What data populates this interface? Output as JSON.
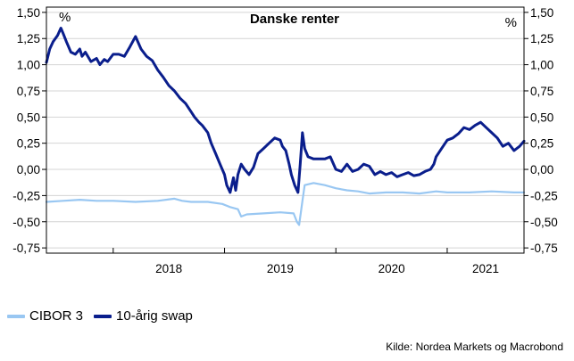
{
  "chart_data": {
    "type": "line",
    "title": "Danske renter",
    "unit_left": "%",
    "unit_right": "%",
    "y_ticks": [
      "1,50",
      "1,25",
      "1,00",
      "0,75",
      "0,50",
      "0,25",
      "0,00",
      "-0,25",
      "-0,50",
      "-0,75"
    ],
    "ylim": [
      -0.8,
      1.55
    ],
    "x_tick_labels": [
      "2018",
      "2019",
      "2020",
      "2021"
    ],
    "xlim": [
      2017.4,
      2021.69
    ],
    "grid": true,
    "legend_placement": "bottom-left",
    "series": [
      {
        "name": "CIBOR 3",
        "color": "#99c7f2",
        "x": [
          2017.4,
          2017.55,
          2017.7,
          2017.85,
          2018.0,
          2018.2,
          2018.4,
          2018.55,
          2018.62,
          2018.7,
          2018.85,
          2018.98,
          2019.05,
          2019.12,
          2019.15,
          2019.2,
          2019.35,
          2019.5,
          2019.62,
          2019.65,
          2019.67,
          2019.7,
          2019.72,
          2019.8,
          2019.9,
          2020.0,
          2020.1,
          2020.2,
          2020.3,
          2020.45,
          2020.6,
          2020.75,
          2020.9,
          2021.0,
          2021.2,
          2021.4,
          2021.6,
          2021.69
        ],
        "values": [
          -0.31,
          -0.3,
          -0.29,
          -0.3,
          -0.3,
          -0.31,
          -0.3,
          -0.28,
          -0.3,
          -0.31,
          -0.31,
          -0.33,
          -0.36,
          -0.38,
          -0.45,
          -0.43,
          -0.42,
          -0.41,
          -0.42,
          -0.5,
          -0.53,
          -0.3,
          -0.15,
          -0.13,
          -0.15,
          -0.18,
          -0.2,
          -0.21,
          -0.23,
          -0.22,
          -0.22,
          -0.23,
          -0.21,
          -0.22,
          -0.22,
          -0.21,
          -0.22,
          -0.22
        ]
      },
      {
        "name": "10-årig swap",
        "color": "#0a1e8c",
        "x": [
          2017.4,
          2017.43,
          2017.46,
          2017.5,
          2017.53,
          2017.55,
          2017.58,
          2017.62,
          2017.66,
          2017.7,
          2017.72,
          2017.75,
          2017.8,
          2017.85,
          2017.88,
          2017.92,
          2017.95,
          2018.0,
          2018.05,
          2018.1,
          2018.15,
          2018.2,
          2018.25,
          2018.3,
          2018.35,
          2018.4,
          2018.45,
          2018.5,
          2018.55,
          2018.6,
          2018.65,
          2018.7,
          2018.73,
          2018.77,
          2018.8,
          2018.85,
          2018.88,
          2018.92,
          2018.96,
          2019.0,
          2019.02,
          2019.05,
          2019.08,
          2019.1,
          2019.12,
          2019.15,
          2019.18,
          2019.22,
          2019.26,
          2019.3,
          2019.35,
          2019.4,
          2019.45,
          2019.5,
          2019.52,
          2019.55,
          2019.58,
          2019.6,
          2019.63,
          2019.66,
          2019.68,
          2019.7,
          2019.72,
          2019.75,
          2019.8,
          2019.85,
          2019.9,
          2019.95,
          2020.0,
          2020.05,
          2020.1,
          2020.15,
          2020.2,
          2020.25,
          2020.3,
          2020.35,
          2020.4,
          2020.45,
          2020.5,
          2020.55,
          2020.6,
          2020.65,
          2020.7,
          2020.75,
          2020.8,
          2020.85,
          2020.88,
          2020.9,
          2020.95,
          2021.0,
          2021.05,
          2021.1,
          2021.15,
          2021.2,
          2021.25,
          2021.3,
          2021.35,
          2021.4,
          2021.45,
          2021.5,
          2021.55,
          2021.6,
          2021.65,
          2021.69
        ],
        "values": [
          1.02,
          1.15,
          1.22,
          1.28,
          1.35,
          1.3,
          1.22,
          1.12,
          1.1,
          1.15,
          1.08,
          1.12,
          1.03,
          1.06,
          1.0,
          1.05,
          1.03,
          1.1,
          1.1,
          1.08,
          1.17,
          1.27,
          1.15,
          1.08,
          1.04,
          0.95,
          0.88,
          0.8,
          0.75,
          0.68,
          0.63,
          0.55,
          0.5,
          0.45,
          0.42,
          0.35,
          0.25,
          0.15,
          0.05,
          -0.05,
          -0.15,
          -0.22,
          -0.08,
          -0.2,
          -0.05,
          0.05,
          0.0,
          -0.05,
          0.02,
          0.15,
          0.2,
          0.25,
          0.3,
          0.28,
          0.22,
          0.18,
          0.05,
          -0.05,
          -0.15,
          -0.22,
          0.05,
          0.35,
          0.2,
          0.12,
          0.1,
          0.1,
          0.1,
          0.12,
          0.0,
          -0.02,
          0.05,
          -0.02,
          0.0,
          0.05,
          0.03,
          -0.05,
          -0.02,
          -0.05,
          -0.03,
          -0.07,
          -0.05,
          -0.03,
          -0.06,
          -0.05,
          -0.02,
          0.0,
          0.05,
          0.12,
          0.2,
          0.28,
          0.3,
          0.34,
          0.4,
          0.38,
          0.42,
          0.45,
          0.4,
          0.35,
          0.3,
          0.22,
          0.25,
          0.18,
          0.22,
          0.27
        ]
      }
    ]
  },
  "legend": {
    "items": [
      {
        "label": "CIBOR 3",
        "color": "#99c7f2"
      },
      {
        "label": "10-årig swap",
        "color": "#0a1e8c"
      }
    ]
  },
  "source": "Kilde: Nordea Markets og Macrobond"
}
